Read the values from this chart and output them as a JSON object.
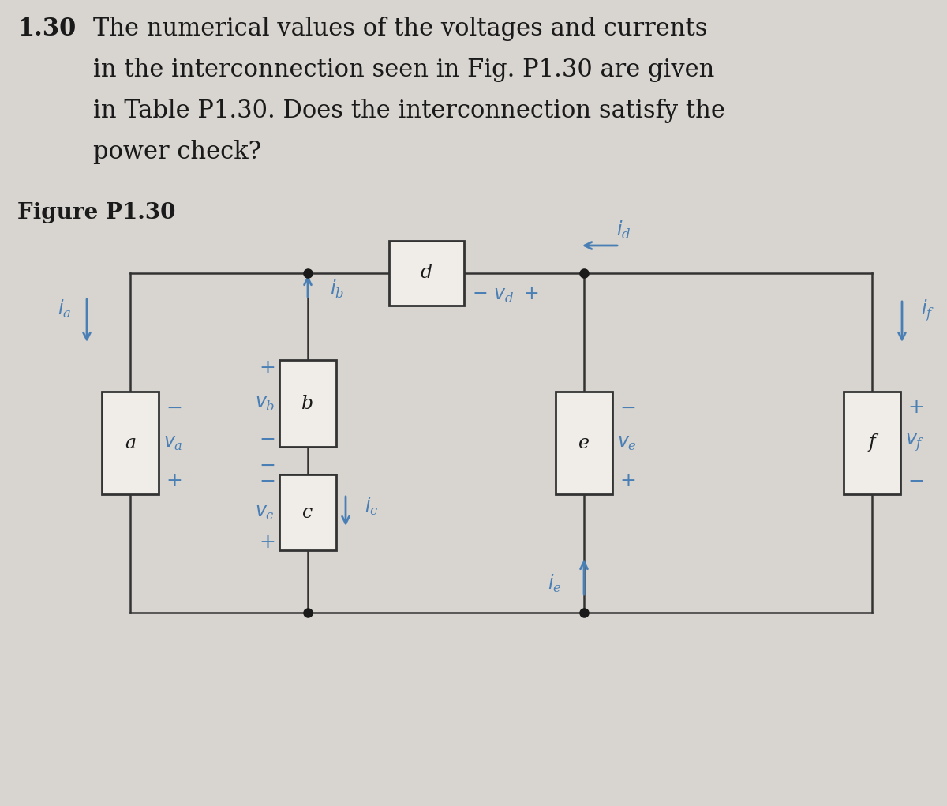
{
  "bg_color": "#d8d5d0",
  "text_color": "#1a1a1a",
  "blue_color": "#4a7fb5",
  "problem_number": "1.30",
  "problem_text_line1": "The numerical values of the voltages and currents",
  "problem_text_line2": "in the interconnection seen in Fig. P1.30 are given",
  "problem_text_line3": "in Table P1.30. Does the interconnection satisfy the",
  "problem_text_line4": "power check?",
  "figure_label": "Figure P1.30",
  "box_color": "#f0ede8",
  "box_edge_color": "#333333",
  "wire_color": "#333333",
  "node_color": "#1a1a1a",
  "text_fontsize": 22,
  "label_fontsize": 17
}
